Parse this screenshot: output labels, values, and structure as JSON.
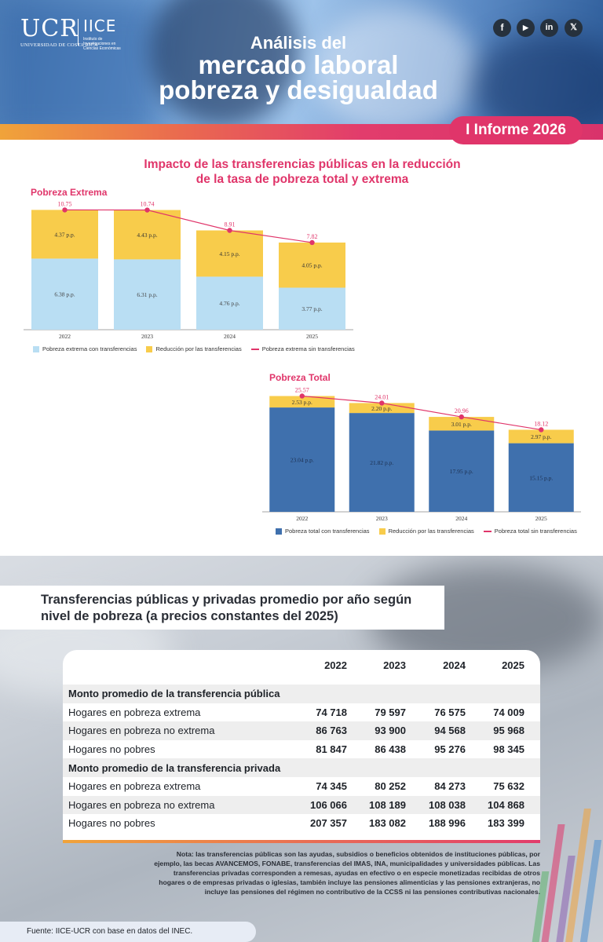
{
  "header": {
    "logo_ucr": "UCR",
    "logo_ucr_sub": "UNIVERSIDAD DE COSTA RICA",
    "logo_iice": "IICE",
    "logo_iice_sub": "Instituto de Investigaciones en Ciencias Económicas",
    "title_line1": "Análisis del",
    "title_line2": "mercado laboral",
    "title_line3": "pobreza y desigualdad",
    "report_badge": "I Informe 2026",
    "social": [
      "f",
      "▶",
      "in",
      "𝕏"
    ]
  },
  "charts_section": {
    "title_line1": "Impacto de las transferencias públicas en la reducción",
    "title_line2": "de la tasa de pobreza total y extrema"
  },
  "chart_data": [
    {
      "type": "bar",
      "stacked": true,
      "title": "Pobreza Extrema",
      "categories": [
        "2022",
        "2023",
        "2024",
        "2025"
      ],
      "series": [
        {
          "name": "Pobreza extrema con transferencias",
          "values": [
            6.38,
            6.31,
            4.76,
            3.77
          ],
          "labels": [
            "6.38 p.p.",
            "6.31 p.p.",
            "4.76 p.p.",
            "3.77 p.p."
          ],
          "color": "#b9def3"
        },
        {
          "name": "Reducción por las transferencias",
          "values": [
            4.37,
            4.43,
            4.15,
            4.05
          ],
          "labels": [
            "4.37 p.p.",
            "4.43 p.p.",
            "4.15 p.p.",
            "4.05 p.p."
          ],
          "color": "#f8cc4b"
        }
      ],
      "line": {
        "name": "Pobreza extrema sin transferencias",
        "values": [
          10.75,
          10.74,
          8.91,
          7.82
        ],
        "labels": [
          "10.75",
          "10.74",
          "8.91",
          "7.82"
        ],
        "color": "#e0356a"
      },
      "ylim": [
        0,
        11.2
      ],
      "legend": "bottom"
    },
    {
      "type": "bar",
      "stacked": true,
      "title": "Pobreza Total",
      "categories": [
        "2022",
        "2023",
        "2024",
        "2025"
      ],
      "series": [
        {
          "name": "Pobreza total con transferencias",
          "values": [
            23.04,
            21.82,
            17.95,
            15.15
          ],
          "labels": [
            "23.04 p.p.",
            "21.82 p.p.",
            "17.95 p.p.",
            "15.15 p.p."
          ],
          "color": "#3f70ad"
        },
        {
          "name": "Reducción por las transferencias",
          "values": [
            2.53,
            2.2,
            3.01,
            2.97
          ],
          "labels": [
            "2.53 p.p.",
            "2.20 p.p.",
            "3.01 p.p.",
            "2.97 p.p."
          ],
          "color": "#f8cc4b"
        }
      ],
      "line": {
        "name": "Pobreza total sin transferencias",
        "values": [
          25.57,
          24.01,
          20.96,
          18.12
        ],
        "labels": [
          "25.57",
          "24.01",
          "20.96",
          "18.12"
        ],
        "color": "#e0356a"
      },
      "ylim": [
        0,
        26.0
      ],
      "legend": "bottom"
    },
    {
      "type": "table",
      "title": "Transferencias públicas y privadas promedio por año según nivel de pobreza (a precios constantes del 2025)",
      "columns": [
        "2022",
        "2023",
        "2024",
        "2025"
      ],
      "rows": [
        {
          "label": "Monto promedio de la transferencia pública",
          "section": true,
          "values": []
        },
        {
          "label": "Hogares en pobreza extrema",
          "values": [
            "74 718",
            "79 597",
            "76 575",
            "74 009"
          ]
        },
        {
          "label": "Hogares en pobreza no extrema",
          "values": [
            "86 763",
            "93 900",
            "94 568",
            "95 968"
          ]
        },
        {
          "label": "Hogares no pobres",
          "values": [
            "81 847",
            "86 438",
            "95 276",
            "98 345"
          ]
        },
        {
          "label": "Monto promedio de la transferencia privada",
          "section": true,
          "values": []
        },
        {
          "label": "Hogares en pobreza extrema",
          "values": [
            "74 345",
            "80 252",
            "84 273",
            "75 632"
          ]
        },
        {
          "label": "Hogares en pobreza no extrema",
          "values": [
            "106 066",
            "108 189",
            "108 038",
            "104 868"
          ]
        },
        {
          "label": "Hogares no pobres",
          "values": [
            "207 357",
            "183 082",
            "188 996",
            "183 399"
          ]
        }
      ]
    }
  ],
  "table_section": {
    "title_line1": "Transferencias públicas y privadas promedio por año según",
    "title_line2": "nivel de pobreza (a precios constantes del 2025)",
    "note": [
      "Nota: las transferencias públicas son las ayudas, subsidios o beneficios obtenidos de instituciones públicas, por",
      "ejemplo, las becas AVANCEMOS, FONABE, transferencias del IMAS, INA, municipalidades y universidades públicas. Las",
      "transferencias privadas corresponden a remesas, ayudas en efectivo o en especie monetizadas recibidas de otros",
      "hogares o de empresas privadas o iglesias, también incluye las pensiones alimenticias y las pensiones extranjeras, no",
      "incluye las pensiones del régimen no contributivo de la CCSS ni las pensiones contributivas nacionales."
    ],
    "source": "Fuente: IICE-UCR con base en datos del INEC."
  }
}
